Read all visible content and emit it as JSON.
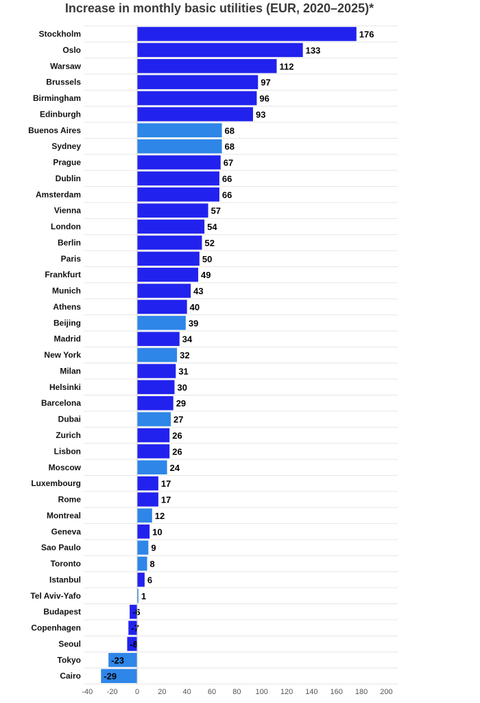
{
  "chart_data": {
    "type": "bar",
    "orientation": "horizontal",
    "title": "Increase in monthly basic utilities (EUR, 2020–2025)*",
    "xlabel": "",
    "ylabel": "",
    "xlim": [
      -40,
      200
    ],
    "x_ticks": [
      "-40",
      "-20",
      "0",
      "20",
      "40",
      "60",
      "80",
      "100",
      "120",
      "140",
      "160",
      "180",
      "200"
    ],
    "grid": "horizontal row lines",
    "legend": "none",
    "colors": {
      "europe": "#2222ee",
      "non_europe": "#2e86e8"
    },
    "categories": [
      "Stockholm",
      "Oslo",
      "Warsaw",
      "Brussels",
      "Birmingham",
      "Edinburgh",
      "Buenos Aires",
      "Sydney",
      "Prague",
      "Dublin",
      "Amsterdam",
      "Vienna",
      "London",
      "Berlin",
      "Paris",
      "Frankfurt",
      "Munich",
      "Athens",
      "Beijing",
      "Madrid",
      "New York",
      "Milan",
      "Helsinki",
      "Barcelona",
      "Dubai",
      "Zurich",
      "Lisbon",
      "Moscow",
      "Luxembourg",
      "Rome",
      "Montreal",
      "Geneva",
      "Sao Paulo",
      "Toronto",
      "Istanbul",
      "Tel Aviv-Yafo",
      "Budapest",
      "Copenhagen",
      "Seoul",
      "Tokyo",
      "Cairo"
    ],
    "values": [
      176,
      133,
      112,
      97,
      96,
      93,
      68,
      68,
      67,
      66,
      66,
      57,
      54,
      52,
      50,
      49,
      43,
      40,
      39,
      34,
      32,
      31,
      30,
      29,
      27,
      26,
      26,
      24,
      17,
      17,
      12,
      10,
      9,
      8,
      6,
      1,
      -6,
      -7,
      -8,
      -23,
      -29
    ],
    "bar_color_group": [
      "europe",
      "europe",
      "europe",
      "europe",
      "europe",
      "europe",
      "non_europe",
      "non_europe",
      "europe",
      "europe",
      "europe",
      "europe",
      "europe",
      "europe",
      "europe",
      "europe",
      "europe",
      "europe",
      "non_europe",
      "europe",
      "non_europe",
      "europe",
      "europe",
      "europe",
      "non_europe",
      "europe",
      "europe",
      "non_europe",
      "europe",
      "europe",
      "non_europe",
      "europe",
      "non_europe",
      "non_europe",
      "europe",
      "non_europe",
      "europe",
      "europe",
      "europe",
      "non_europe",
      "non_europe"
    ]
  }
}
